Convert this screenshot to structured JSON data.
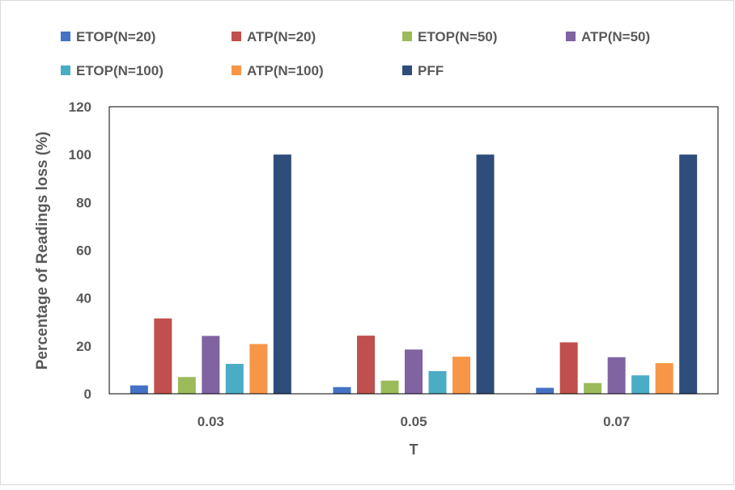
{
  "chart_data": {
    "type": "bar",
    "title": "",
    "xlabel": "T",
    "ylabel": "Percentage of Readings loss (%)",
    "categories": [
      "0.03",
      "0.05",
      "0.07"
    ],
    "ylim": [
      0,
      120
    ],
    "yticks": [
      "0",
      "20",
      "40",
      "60",
      "80",
      "100",
      "120"
    ],
    "grid": false,
    "legend_position": "top",
    "series": [
      {
        "name": "ETOP(N=20)",
        "color": "#4472C4",
        "values": [
          3.5,
          2.8,
          2.5
        ]
      },
      {
        "name": "ATP(N=20)",
        "color": "#C0504D",
        "values": [
          31.5,
          24.3,
          21.5
        ]
      },
      {
        "name": "ETOP(N=50)",
        "color": "#9BBB59",
        "values": [
          7,
          5.5,
          4.5
        ]
      },
      {
        "name": "ATP(N=50)",
        "color": "#8064A2",
        "values": [
          24.2,
          18.5,
          15.3
        ]
      },
      {
        "name": "ETOP(N=100)",
        "color": "#4BACC6",
        "values": [
          12.5,
          9.5,
          7.7
        ]
      },
      {
        "name": "ATP(N=100)",
        "color": "#F79646",
        "values": [
          20.8,
          15.5,
          12.8
        ]
      },
      {
        "name": "PFF",
        "color": "#2E4D7B",
        "values": [
          100,
          100,
          100
        ]
      }
    ]
  }
}
